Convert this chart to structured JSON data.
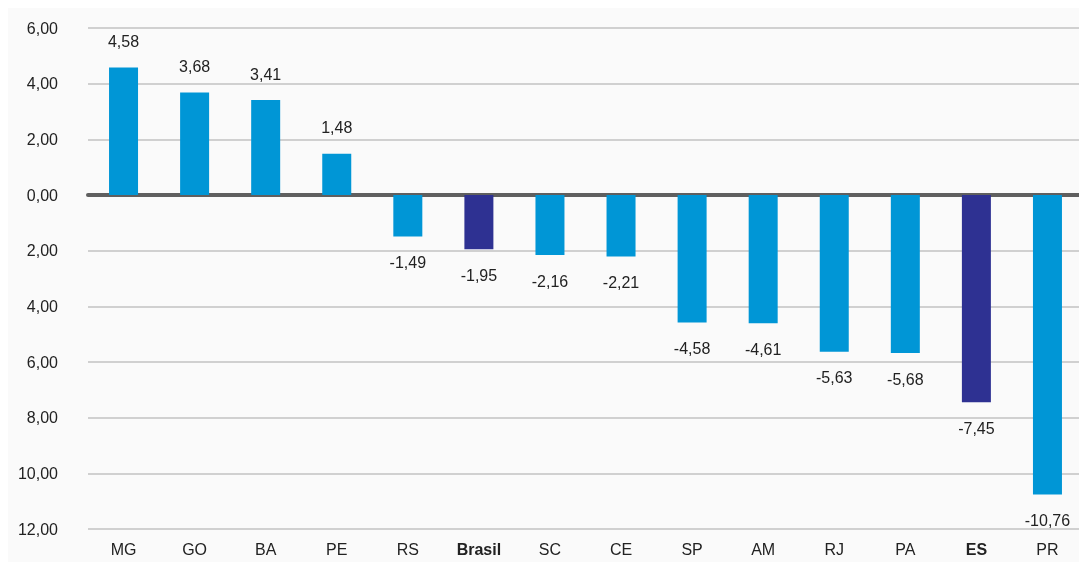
{
  "chart_data": {
    "type": "bar",
    "categories": [
      "MG",
      "GO",
      "BA",
      "PE",
      "RS",
      "Brasil",
      "SC",
      "CE",
      "SP",
      "AM",
      "RJ",
      "PA",
      "ES",
      "PR"
    ],
    "values": [
      4.58,
      3.68,
      3.41,
      1.48,
      -1.49,
      -1.95,
      -2.16,
      -2.21,
      -4.58,
      -4.61,
      -5.63,
      -5.68,
      -7.45,
      -10.76
    ],
    "colors": [
      "#0096d6",
      "#0096d6",
      "#0096d6",
      "#0096d6",
      "#0096d6",
      "#2e3192",
      "#0096d6",
      "#0096d6",
      "#0096d6",
      "#0096d6",
      "#0096d6",
      "#0096d6",
      "#2e3192",
      "#0096d6"
    ],
    "value_labels": [
      "4,58",
      "3,68",
      "3,41",
      "1,48",
      "-1,49",
      "-1,95",
      "-2,16",
      "-2,21",
      "-4,58",
      "-4,61",
      "-5,63",
      "-5,68",
      "-7,45",
      "-10,76"
    ],
    "ylim": [
      -12,
      6
    ],
    "yticks": [
      {
        "value": 6,
        "label": "6,00"
      },
      {
        "value": 4,
        "label": "4,00"
      },
      {
        "value": 2,
        "label": "2,00"
      },
      {
        "value": 0,
        "label": "0,00"
      },
      {
        "value": -2,
        "label": "2,00"
      },
      {
        "value": -4,
        "label": "4,00"
      },
      {
        "value": -6,
        "label": "6,00"
      },
      {
        "value": -8,
        "label": "8,00"
      },
      {
        "value": -10,
        "label": "10,00"
      },
      {
        "value": -12,
        "label": "12,00"
      }
    ],
    "grid": "y"
  }
}
